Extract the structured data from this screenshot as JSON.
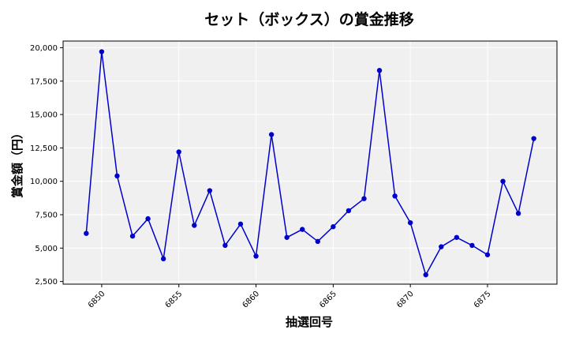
{
  "chart_data": {
    "type": "line",
    "title": "セット（ボックス）の賞金推移",
    "xlabel": "抽選回号",
    "ylabel": "賞金額（円）",
    "x": [
      6849,
      6850,
      6851,
      6852,
      6853,
      6854,
      6855,
      6856,
      6857,
      6858,
      6859,
      6860,
      6861,
      6862,
      6863,
      6864,
      6865,
      6866,
      6867,
      6868,
      6869,
      6870,
      6871,
      6872,
      6873,
      6874,
      6875,
      6876,
      6877,
      6878
    ],
    "series": [
      {
        "values": [
          6100,
          19700,
          10400,
          5900,
          7200,
          4200,
          12200,
          6700,
          9300,
          5200,
          6800,
          4400,
          13500,
          5800,
          6400,
          5500,
          6600,
          7800,
          8700,
          18300,
          8900,
          6900,
          3000,
          5100,
          5800,
          5200,
          4500,
          10000,
          7600,
          13200
        ],
        "color": "#0000cc",
        "marker": "circle"
      }
    ],
    "xlim": [
      6847.5,
      6879.5
    ],
    "ylim": [
      2300,
      20500
    ],
    "xticks": [
      6850,
      6855,
      6860,
      6865,
      6870,
      6875
    ],
    "xtick_labels": [
      "6850",
      "6855",
      "6860",
      "6865",
      "6870",
      "6875"
    ],
    "yticks": [
      2500,
      5000,
      7500,
      10000,
      12500,
      15000,
      17500,
      20000
    ],
    "ytick_labels": [
      "2,500",
      "5,000",
      "7,500",
      "10,000",
      "12,500",
      "15,000",
      "17,500",
      "20,000"
    ],
    "grid": true,
    "plot_background": "#f0f0f0",
    "grid_color": "#ffffff"
  }
}
